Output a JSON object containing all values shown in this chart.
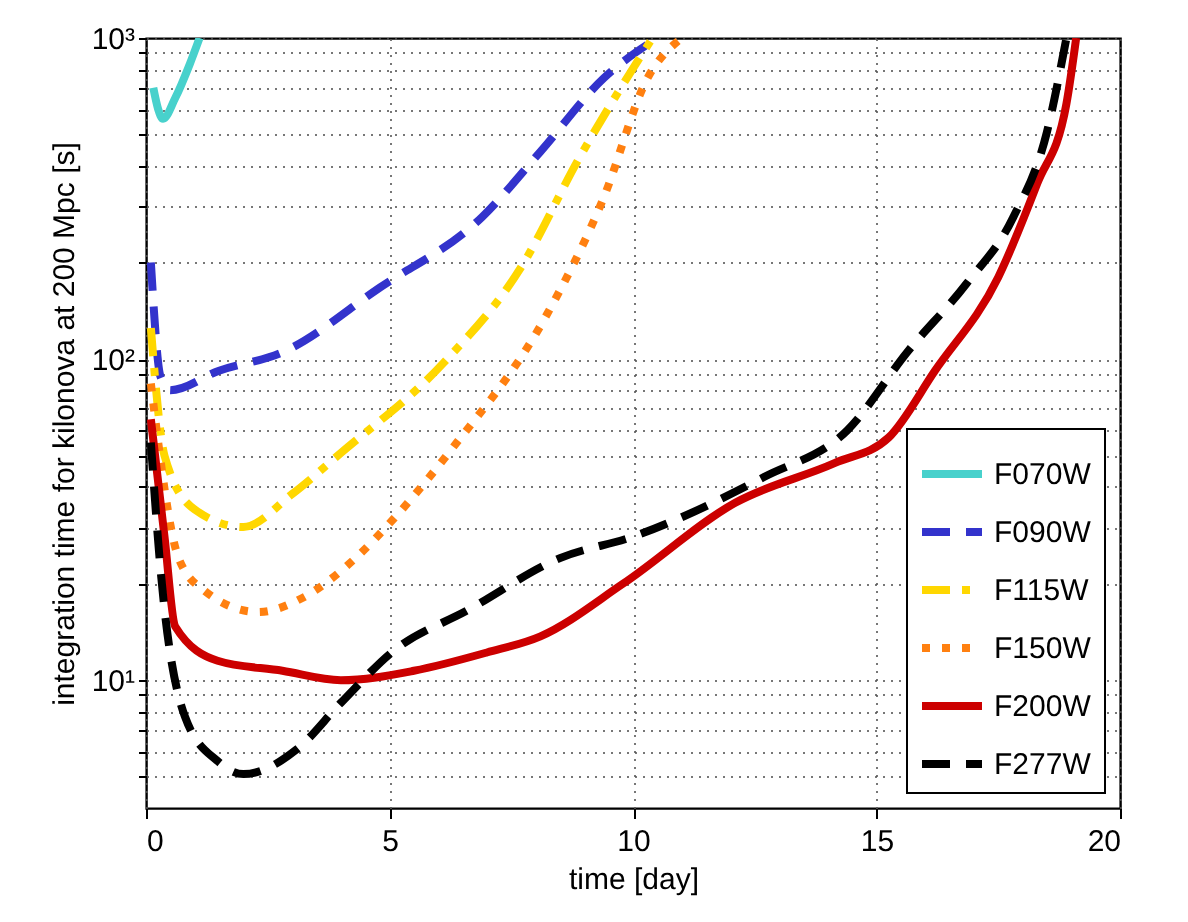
{
  "chart_data": {
    "type": "line",
    "xlabel": "time [day]",
    "ylabel": "integration time for kilonova at 200 Mpc [s]",
    "log": "y",
    "grid": true,
    "legend": "bottom right",
    "marker": "none",
    "xlim": [
      0,
      20
    ],
    "xticks": [
      0,
      5,
      10,
      15,
      20
    ],
    "ylim": [
      4,
      1000
    ],
    "yticks": [
      {
        "value": 5,
        "label": null
      },
      {
        "value": 6,
        "label": null
      },
      {
        "value": 7,
        "label": null
      },
      {
        "value": 8,
        "label": null
      },
      {
        "value": 9,
        "label": null
      },
      {
        "value": 10,
        "label": "10¹"
      },
      {
        "value": 20,
        "label": null
      },
      {
        "value": 30,
        "label": null
      },
      {
        "value": 40,
        "label": null
      },
      {
        "value": 50,
        "label": null
      },
      {
        "value": 60,
        "label": null
      },
      {
        "value": 70,
        "label": null
      },
      {
        "value": 80,
        "label": null
      },
      {
        "value": 90,
        "label": null
      },
      {
        "value": 100,
        "label": "10²"
      },
      {
        "value": 200,
        "label": null
      },
      {
        "value": 300,
        "label": null
      },
      {
        "value": 400,
        "label": null
      },
      {
        "value": 500,
        "label": null
      },
      {
        "value": 600,
        "label": null
      },
      {
        "value": 700,
        "label": null
      },
      {
        "value": 800,
        "label": null
      },
      {
        "value": 900,
        "label": null
      },
      {
        "value": 1000,
        "label": "10³"
      }
    ],
    "series": [
      {
        "name": "F070W",
        "color": "#48d1cc",
        "line_style": "solid",
        "x": [
          0.15,
          0.25,
          0.35,
          0.6,
          0.9,
          1.1
        ],
        "values": [
          700,
          600,
          560,
          650,
          830,
          1000
        ]
      },
      {
        "name": "F090W",
        "color": "#3333cc",
        "line_style": "dashed",
        "x": [
          0.1,
          0.3,
          0.5,
          1.5,
          2.8,
          4.8,
          6.9,
          8.1,
          9.4,
          10.5
        ],
        "values": [
          200,
          88,
          80,
          92,
          105,
          167,
          277,
          443,
          750,
          1000
        ]
      },
      {
        "name": "F115W",
        "color": "#ffd700",
        "line_style": "dashdot",
        "x": [
          0.1,
          0.38,
          1.0,
          2.0,
          3.0,
          4.0,
          6.1,
          7.7,
          8.9,
          9.7,
          10.4
        ],
        "values": [
          125,
          50,
          34,
          30,
          38,
          51,
          97,
          193,
          424,
          680,
          1000
        ]
      },
      {
        "name": "F150W",
        "color": "#ff8010",
        "line_style": "dotted",
        "x": [
          0.1,
          0.67,
          1.2,
          2.3,
          3.2,
          4.3,
          5.1,
          6.3,
          8.2,
          9.4,
          10.3,
          11.0
        ],
        "values": [
          84,
          24,
          19,
          16.3,
          18,
          24,
          32,
          53,
          135,
          319,
          751,
          1000
        ]
      },
      {
        "name": "F200W",
        "color": "#cc0000",
        "line_style": "solid",
        "x": [
          0.1,
          0.38,
          0.6,
          1.47,
          2.8,
          4.0,
          5.5,
          7.0,
          8.1,
          9.8,
          12.1,
          14.15,
          15.25,
          16.2,
          17.5,
          18.3,
          18.9,
          19.1
        ],
        "values": [
          65,
          28,
          14.7,
          11.5,
          10.7,
          10,
          10.7,
          12.2,
          13.7,
          20,
          35.7,
          47.5,
          57,
          92,
          180,
          352,
          624,
          1000
        ]
      },
      {
        "name": "F277W",
        "color": "#000000",
        "line_style": "dashed",
        "x": [
          0.1,
          0.3,
          0.8,
          1.47,
          2.0,
          3.1,
          4.0,
          5.1,
          6.6,
          8.5,
          10.0,
          12.7,
          14.4,
          15.65,
          16.85,
          17.8,
          18.5,
          18.9
        ],
        "values": [
          55,
          22,
          7.7,
          5.6,
          5.1,
          6.1,
          8.5,
          12.4,
          16.5,
          24,
          28,
          43,
          60,
          106,
          172,
          275,
          510,
          1000
        ]
      }
    ]
  }
}
